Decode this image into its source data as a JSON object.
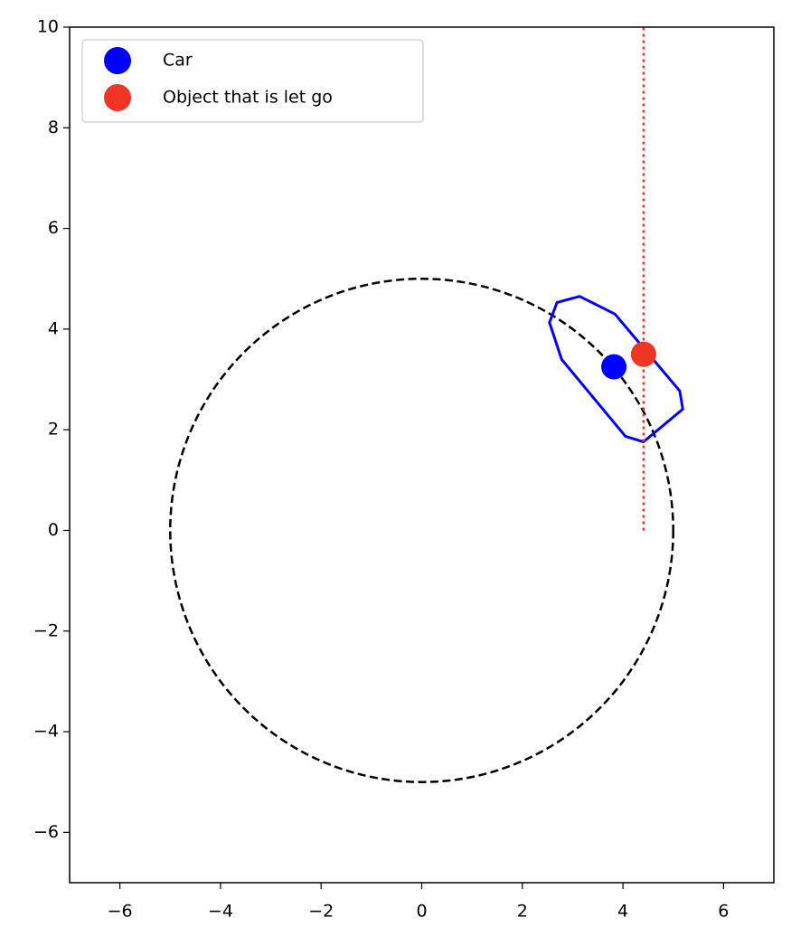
{
  "chart_data": {
    "type": "scatter",
    "series": [
      {
        "name": "Car",
        "color": "#0000ff",
        "x": [
          3.82
        ],
        "y": [
          3.25
        ]
      },
      {
        "name": "Object that is let go",
        "color": "#ee3526",
        "x": [
          4.41
        ],
        "y": [
          3.5
        ]
      }
    ],
    "circle": {
      "center": [
        0,
        0
      ],
      "radius": 5,
      "color": "#000000",
      "style": "dashed"
    },
    "car_outline": {
      "color": "#0000ff",
      "x": [
        2.69,
        3.14,
        3.84,
        5.13,
        5.19,
        4.41,
        4.05,
        2.78,
        2.54
      ],
      "y": [
        4.53,
        4.65,
        4.3,
        2.77,
        2.41,
        1.76,
        1.87,
        3.4,
        4.13
      ]
    },
    "release_line": {
      "color": "#ee3526",
      "style": "dotted",
      "x": [
        4.41,
        4.41
      ],
      "y": [
        0,
        10
      ]
    },
    "xlim": [
      -7,
      7
    ],
    "ylim": [
      -7,
      10
    ],
    "xticks": [
      {
        "value": -6,
        "label": "−6"
      },
      {
        "value": -4,
        "label": "−4"
      },
      {
        "value": -2,
        "label": "−2"
      },
      0,
      2,
      4,
      6
    ],
    "yticks": [
      {
        "value": -6,
        "label": "−6"
      },
      {
        "value": -4,
        "label": "−4"
      },
      {
        "value": -2,
        "label": "−2"
      },
      0,
      2,
      4,
      6,
      8,
      10
    ],
    "legend": "upper left"
  }
}
